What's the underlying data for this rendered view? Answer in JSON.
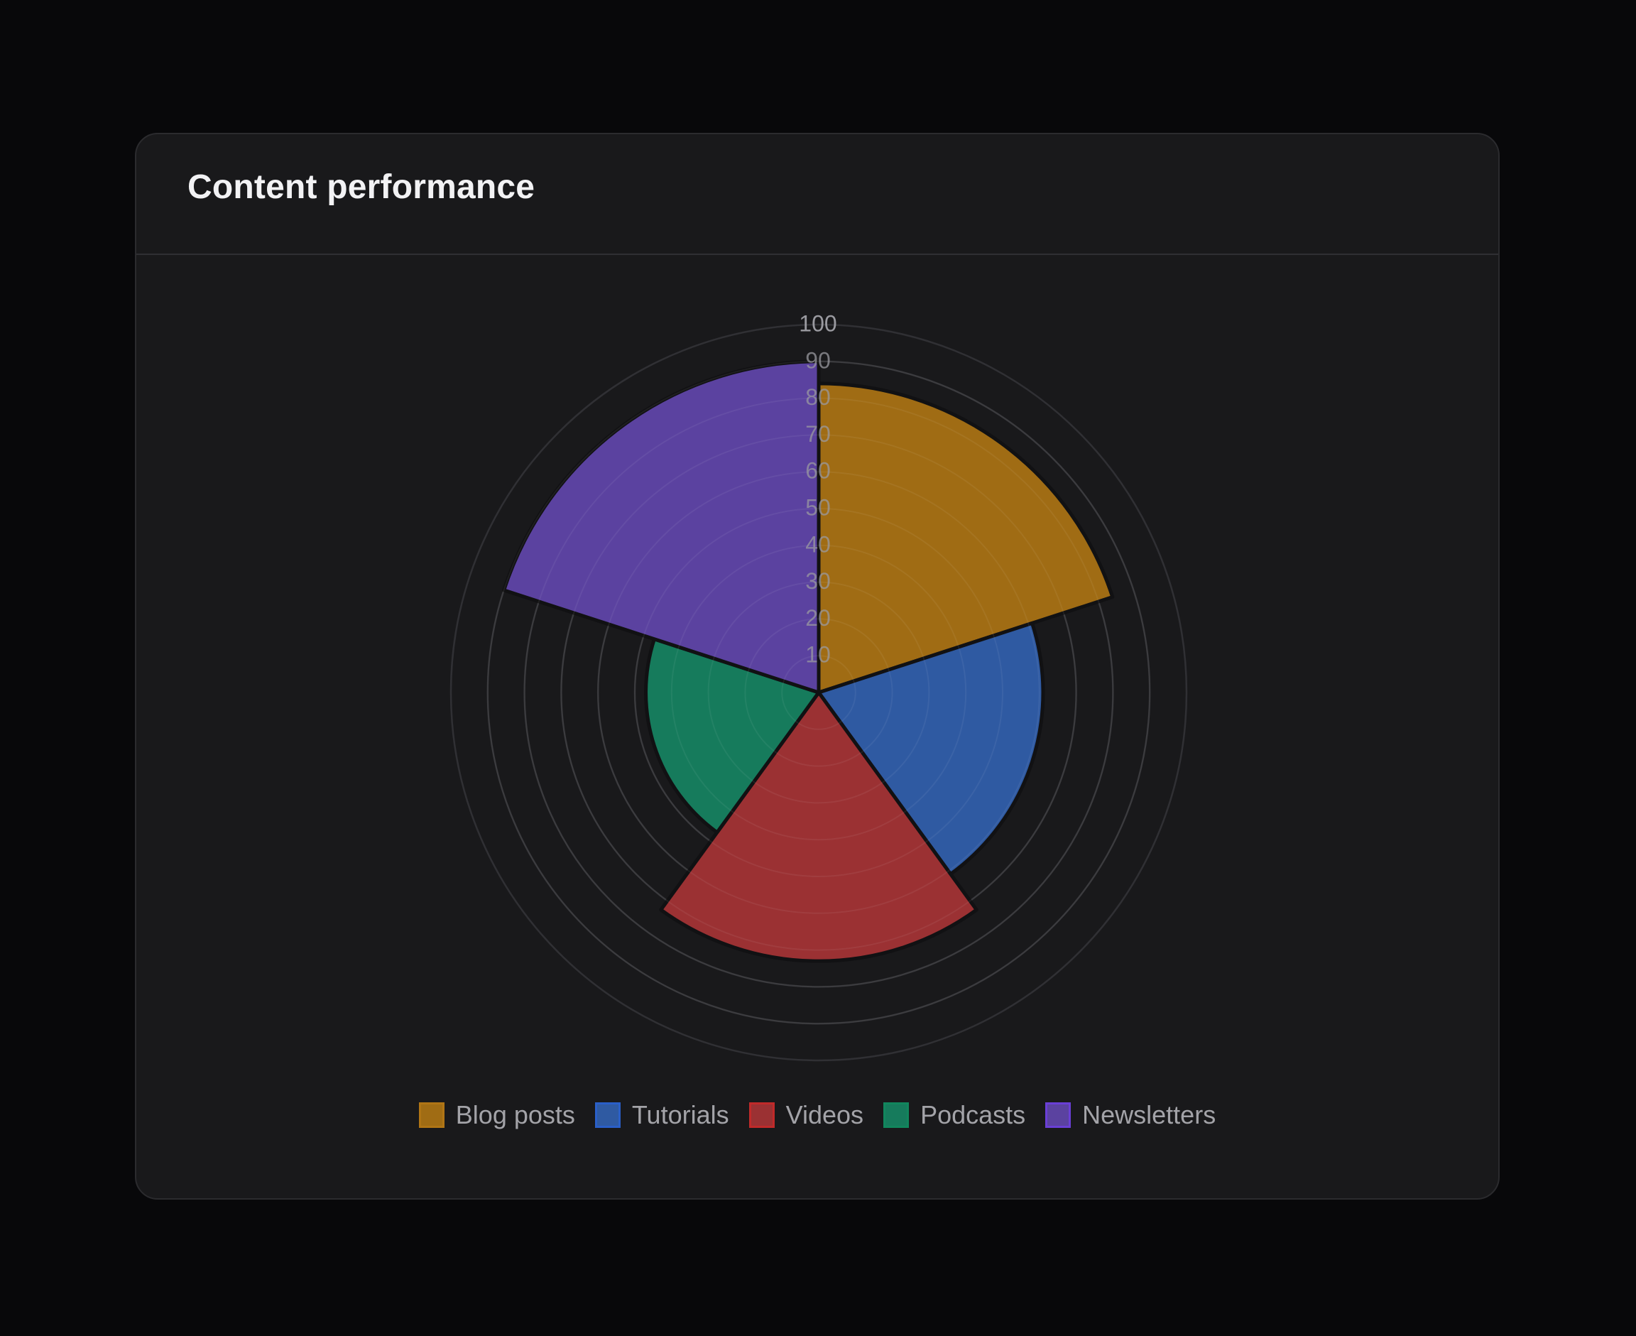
{
  "card": {
    "title": "Content performance"
  },
  "colors": {
    "page_background": "#08080a",
    "card_background": "#19191b",
    "grid": "#303034",
    "tick_label": "#9a9aa0",
    "slice_border": "#111113"
  },
  "chart_data": {
    "type": "polarArea",
    "categories": [
      "Blog posts",
      "Tutorials",
      "Videos",
      "Podcasts",
      "Newsletters"
    ],
    "values": [
      84,
      61,
      73,
      47,
      90
    ],
    "colors": [
      "#a06c14",
      "#2f5aa2",
      "#9b3133",
      "#167b5c",
      "#5b42a0"
    ],
    "border_colors": [
      "#b07515",
      "#2a5fc8",
      "#c02a2a",
      "#11865d",
      "#6a3fd6"
    ],
    "r_range": [
      0,
      100
    ],
    "r_ticks": [
      10,
      20,
      30,
      40,
      50,
      60,
      70,
      80,
      90,
      100
    ],
    "grid": true,
    "legend_position": "bottom"
  }
}
